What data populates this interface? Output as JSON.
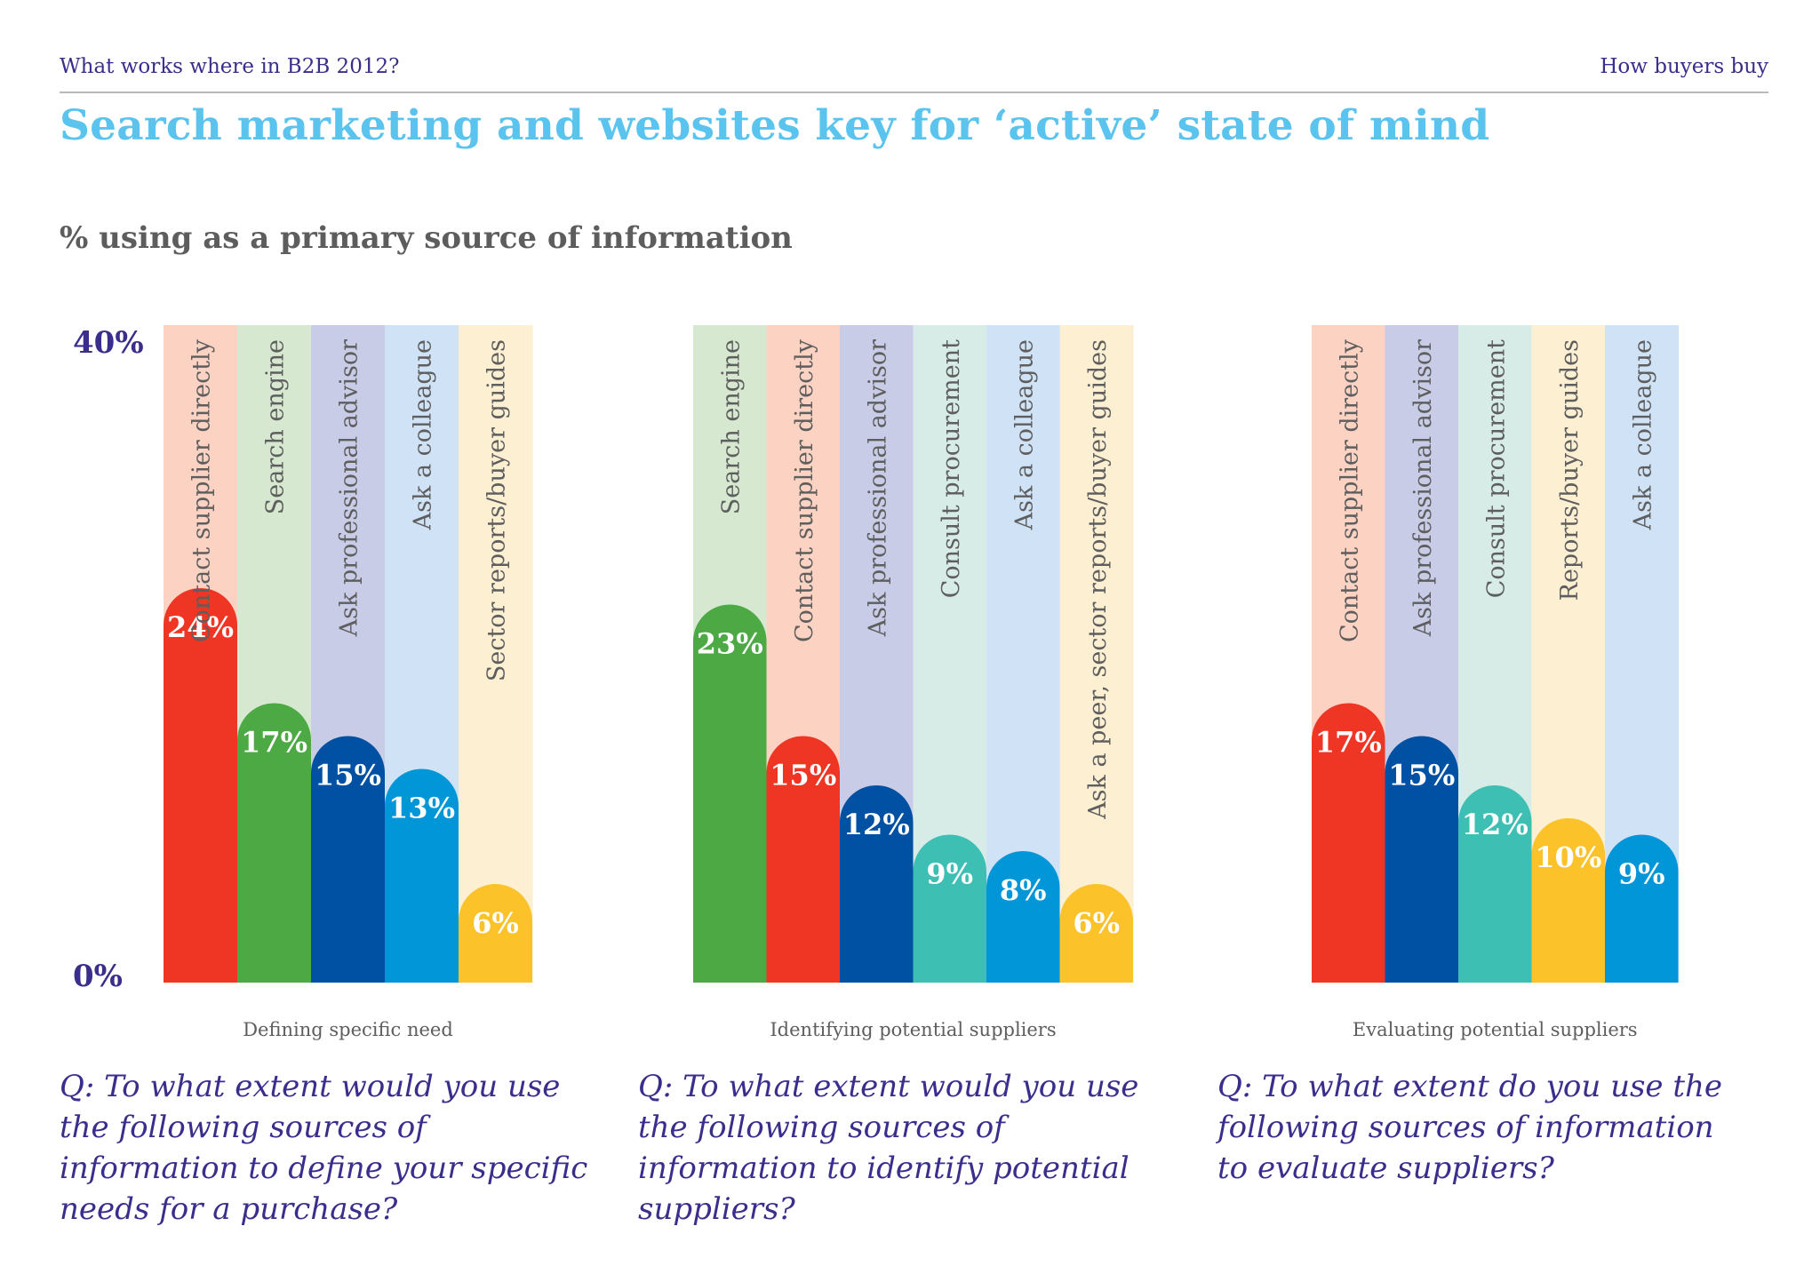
{
  "header": {
    "left": "What works where in B2B 2012?",
    "right": "How buyers buy"
  },
  "title": "Search marketing and websites key for ‘active’ state of mind",
  "subtitle": "% using as a primary source of information",
  "axis": {
    "top_label": "40%",
    "bottom_label": "0%"
  },
  "questions": [
    "Q: To what extent would you use the following sources of  information to define your specific needs for a purchase?",
    "Q: To what extent would you use the following sources of  information to identify potential suppliers?",
    "Q: To what extent do you use the following sources of  information to evaluate suppliers?"
  ],
  "colors": {
    "red": "#ef3524",
    "red_bg": "#fcd3c3",
    "green": "#4ca944",
    "green_bg": "#d6e8cf",
    "navy": "#0051a3",
    "navy_bg": "#c9cce6",
    "blue": "#0096d8",
    "blue_bg": "#d0e2f5",
    "yellow": "#fcc22a",
    "yellow_bg": "#fdefd2",
    "teal": "#3dbfb4",
    "teal_bg": "#d7ece6"
  },
  "chart_data": [
    {
      "type": "bar",
      "xlabel": "Defining specific need",
      "ylim": [
        0,
        40
      ],
      "categories": [
        "Contact supplier directly",
        "Search engine",
        "Ask professional advisor",
        "Ask a colleague",
        "Sector reports/buyer guides"
      ],
      "values": [
        24,
        17,
        15,
        13,
        6
      ],
      "value_labels": [
        "24%",
        "17%",
        "15%",
        "13%",
        "6%"
      ],
      "colors": [
        "red",
        "green",
        "navy",
        "blue",
        "yellow"
      ]
    },
    {
      "type": "bar",
      "xlabel": "Identifying potential suppliers",
      "ylim": [
        0,
        40
      ],
      "categories": [
        "Search engine",
        "Contact supplier directly",
        "Ask professional advisor",
        "Consult procurement",
        "Ask a colleague",
        "Ask a peer, sector reports/buyer guides"
      ],
      "values": [
        23,
        15,
        12,
        9,
        8,
        6
      ],
      "value_labels": [
        "23%",
        "15%",
        "12%",
        "9%",
        "8%",
        "6%"
      ],
      "colors": [
        "green",
        "red",
        "navy",
        "teal",
        "blue",
        "yellow"
      ]
    },
    {
      "type": "bar",
      "xlabel": "Evaluating potential suppliers",
      "ylim": [
        0,
        40
      ],
      "categories": [
        "Contact supplier directly",
        "Ask professional advisor",
        "Consult procurement",
        "Reports/buyer guides",
        "Ask a colleague"
      ],
      "values": [
        17,
        15,
        12,
        10,
        9
      ],
      "value_labels": [
        "17%",
        "15%",
        "12%",
        "10%",
        "9%"
      ],
      "colors": [
        "red",
        "navy",
        "teal",
        "yellow",
        "blue"
      ]
    }
  ]
}
